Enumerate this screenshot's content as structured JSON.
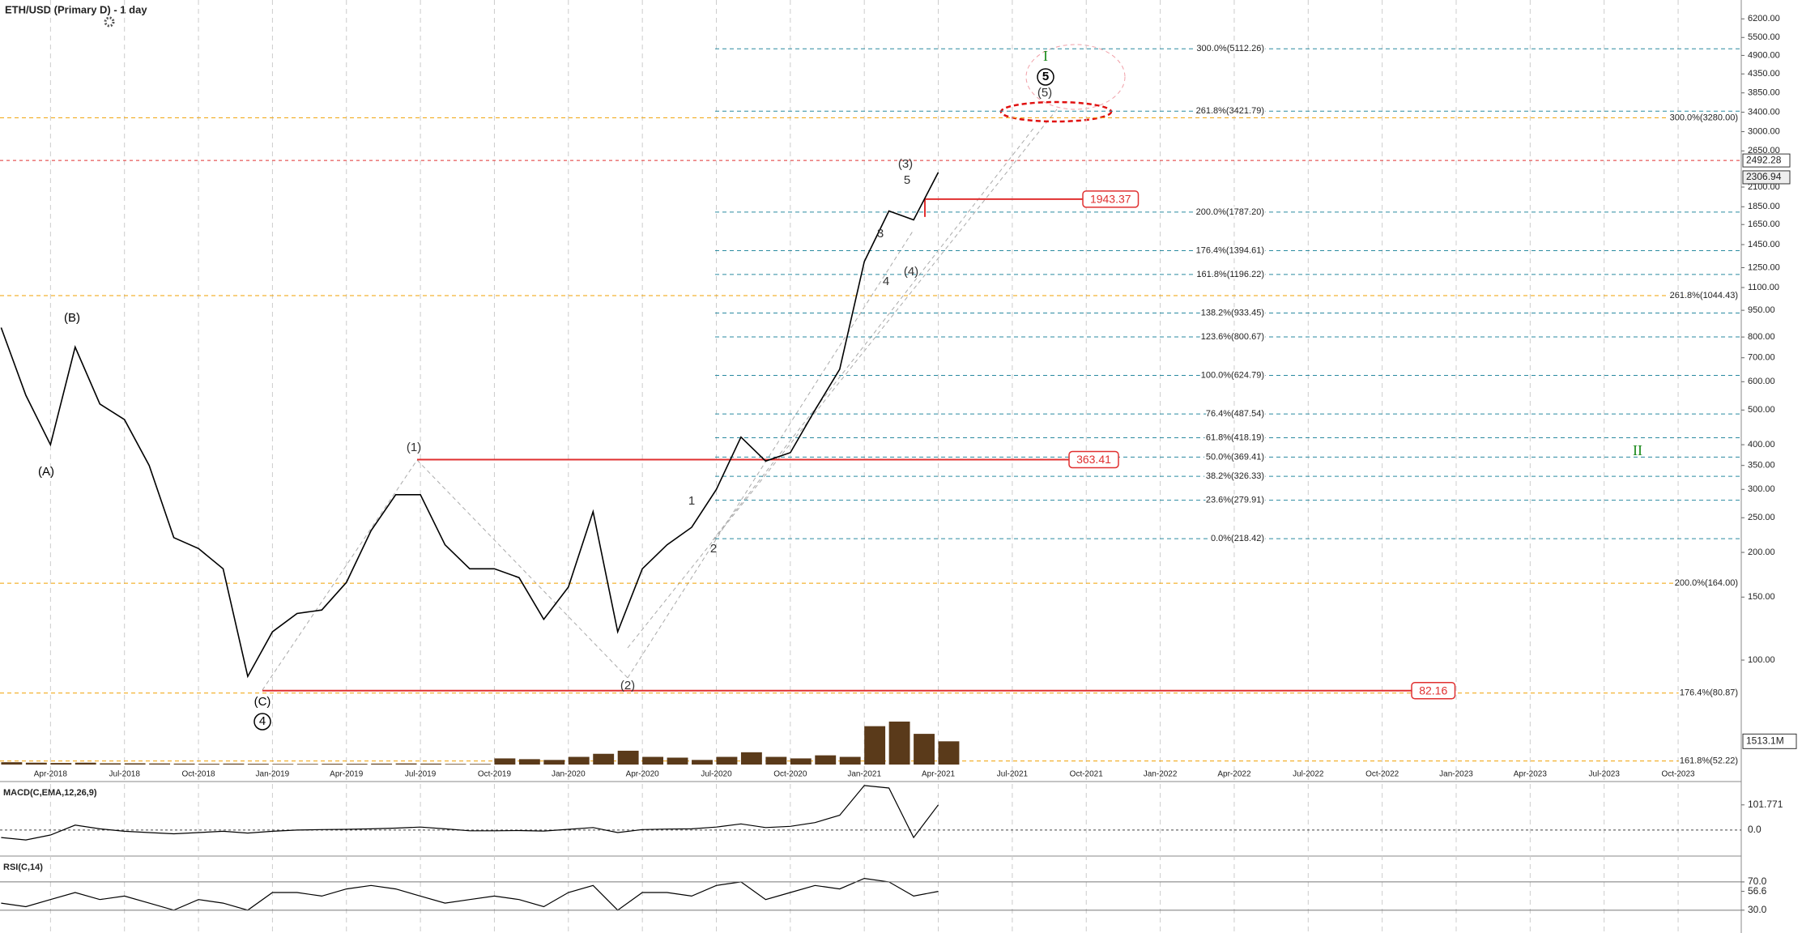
{
  "chart_data": {
    "type": "line",
    "title": "ETH/USD (Primary D) - 1 day",
    "x": [
      "2018-02",
      "2018-03",
      "2018-04",
      "2018-05",
      "2018-06",
      "2018-07",
      "2018-08",
      "2018-09",
      "2018-10",
      "2018-11",
      "2018-12",
      "2019-01",
      "2019-02",
      "2019-03",
      "2019-04",
      "2019-05",
      "2019-06",
      "2019-07",
      "2019-08",
      "2019-09",
      "2019-10",
      "2019-11",
      "2019-12",
      "2020-01",
      "2020-02",
      "2020-03",
      "2020-04",
      "2020-05",
      "2020-06",
      "2020-07",
      "2020-08",
      "2020-09",
      "2020-10",
      "2020-11",
      "2020-12",
      "2021-01",
      "2021-02",
      "2021-03",
      "2021-04"
    ],
    "series": [
      {
        "name": "ETH/USD",
        "color": "#000000",
        "values": [
          850,
          550,
          400,
          750,
          520,
          470,
          350,
          220,
          205,
          180,
          90,
          120,
          135,
          138,
          165,
          230,
          290,
          290,
          210,
          180,
          180,
          170,
          130,
          160,
          260,
          120,
          180,
          210,
          235,
          300,
          420,
          360,
          380,
          500,
          650,
          1300,
          1800,
          1700,
          2306.94
        ]
      }
    ],
    "log_scale": true,
    "ylim": [
      50,
      7000
    ],
    "yticks": [
      {
        "value": 6200,
        "label": "6200.00"
      },
      {
        "value": 5500,
        "label": "5500.00"
      },
      {
        "value": 4900,
        "label": "4900.00"
      },
      {
        "value": 4350,
        "label": "4350.00"
      },
      {
        "value": 3850,
        "label": "3850.00"
      },
      {
        "value": 3400,
        "label": "3400.00"
      },
      {
        "value": 3000,
        "label": "3000.00"
      },
      {
        "value": 2650,
        "label": "2650.00"
      },
      {
        "value": 2100,
        "label": "2100.00"
      },
      {
        "value": 1850,
        "label": "1850.00"
      },
      {
        "value": 1650,
        "label": "1650.00"
      },
      {
        "value": 1450,
        "label": "1450.00"
      },
      {
        "value": 1250,
        "label": "1250.00"
      },
      {
        "value": 1100,
        "label": "1100.00"
      },
      {
        "value": 950,
        "label": "950.00"
      },
      {
        "value": 800,
        "label": "800.00"
      },
      {
        "value": 700,
        "label": "700.00"
      },
      {
        "value": 600,
        "label": "600.00"
      },
      {
        "value": 500,
        "label": "500.00"
      },
      {
        "value": 400,
        "label": "400.00"
      },
      {
        "value": 350,
        "label": "350.00"
      },
      {
        "value": 300,
        "label": "300.00"
      },
      {
        "value": 250,
        "label": "250.00"
      },
      {
        "value": 200,
        "label": "200.00"
      },
      {
        "value": 150,
        "label": "150.00"
      },
      {
        "value": 100,
        "label": "100.00"
      }
    ],
    "xticks": [
      {
        "value": "2018-04",
        "label": "Apr-2018"
      },
      {
        "value": "2018-07",
        "label": "Jul-2018"
      },
      {
        "value": "2018-10",
        "label": "Oct-2018"
      },
      {
        "value": "2019-01",
        "label": "Jan-2019"
      },
      {
        "value": "2019-04",
        "label": "Apr-2019"
      },
      {
        "value": "2019-07",
        "label": "Jul-2019"
      },
      {
        "value": "2019-10",
        "label": "Oct-2019"
      },
      {
        "value": "2020-01",
        "label": "Jan-2020"
      },
      {
        "value": "2020-04",
        "label": "Apr-2020"
      },
      {
        "value": "2020-07",
        "label": "Jul-2020"
      },
      {
        "value": "2020-10",
        "label": "Oct-2020"
      },
      {
        "value": "2021-01",
        "label": "Jan-2021"
      },
      {
        "value": "2021-04",
        "label": "Apr-2021"
      },
      {
        "value": "2021-07",
        "label": "Jul-2021"
      },
      {
        "value": "2021-10",
        "label": "Oct-2021"
      },
      {
        "value": "2022-01",
        "label": "Jan-2022"
      },
      {
        "value": "2022-04",
        "label": "Apr-2022"
      },
      {
        "value": "2022-07",
        "label": "Jul-2022"
      },
      {
        "value": "2022-10",
        "label": "Oct-2022"
      },
      {
        "value": "2023-01",
        "label": "Jan-2023"
      },
      {
        "value": "2023-04",
        "label": "Apr-2023"
      },
      {
        "value": "2023-07",
        "label": "Jul-2023"
      },
      {
        "value": "2023-10",
        "label": "Oct-2023"
      }
    ],
    "grid": true,
    "fib_levels": [
      {
        "value": 5112.26,
        "label": "300.0%(5112.26)"
      },
      {
        "value": 3421.79,
        "label": "261.8%(3421.79)"
      },
      {
        "value": 1787.2,
        "label": "200.0%(1787.20)"
      },
      {
        "value": 1394.61,
        "label": "176.4%(1394.61)"
      },
      {
        "value": 1196.22,
        "label": "161.8%(1196.22)"
      },
      {
        "value": 933.45,
        "label": "138.2%(933.45)"
      },
      {
        "value": 800.67,
        "label": "123.6%(800.67)"
      },
      {
        "value": 624.79,
        "label": "100.0%(624.79)"
      },
      {
        "value": 487.54,
        "label": "76.4%(487.54)"
      },
      {
        "value": 418.19,
        "label": "61.8%(418.19)"
      },
      {
        "value": 369.41,
        "label": "50.0%(369.41)"
      },
      {
        "value": 326.33,
        "label": "38.2%(326.33)"
      },
      {
        "value": 279.91,
        "label": "23.6%(279.91)"
      },
      {
        "value": 218.42,
        "label": "0.0%(218.42)"
      }
    ],
    "fib_color": "#2a8aa0",
    "ext_levels": [
      {
        "value": 3280.0,
        "label": "300.0%(3280.00)"
      },
      {
        "value": 1044.43,
        "label": "261.8%(1044.43)"
      },
      {
        "value": 164.0,
        "label": "200.0%(164.00)"
      },
      {
        "value": 80.87,
        "label": "176.4%(80.87)"
      },
      {
        "value": 52.22,
        "label": "161.8%(52.22)"
      }
    ],
    "ext_color": "#f0a000",
    "key_levels": [
      363.41,
      1943.37,
      82.16
    ],
    "key_color": "#e03030",
    "price_markers": [
      2492.28,
      2306.94
    ],
    "wave_labels": [
      {
        "text": "(B)",
        "color": "#000000"
      },
      {
        "text": "(A)",
        "color": "#000000"
      },
      {
        "text": "(C)",
        "color": "#000000"
      },
      {
        "text": "4",
        "color": "#000000"
      },
      {
        "text": "(1)",
        "color": "#333333"
      },
      {
        "text": "(2)",
        "color": "#333333"
      },
      {
        "text": "1",
        "color": "#333333"
      },
      {
        "text": "2",
        "color": "#333333"
      },
      {
        "text": "3",
        "color": "#333333"
      },
      {
        "text": "4",
        "color": "#333333"
      },
      {
        "text": "(4)",
        "color": "#333333"
      },
      {
        "text": "(3)",
        "color": "#333333"
      },
      {
        "text": "5",
        "color": "#333333"
      },
      {
        "text": "(5)",
        "color": "#333333"
      },
      {
        "text": "5",
        "color": "#000000"
      },
      {
        "text": "I",
        "color": "#1a8a1a"
      },
      {
        "text": "II",
        "color": "#1a8a1a"
      }
    ],
    "volume": {
      "color": "#5a3a1a",
      "ylim": [
        0,
        3800
      ],
      "values": [
        150,
        120,
        100,
        120,
        80,
        80,
        70,
        60,
        50,
        60,
        50,
        40,
        40,
        50,
        50,
        60,
        70,
        60,
        40,
        40,
        400,
        350,
        300,
        500,
        700,
        900,
        500,
        450,
        300,
        500,
        800,
        500,
        400,
        600,
        500,
        2500,
        2800,
        2000,
        1513.1
      ],
      "last": {
        "value": 1513.1,
        "label": "1513.1M"
      }
    },
    "macd": {
      "title": "MACD(C,EMA,12,26,9)",
      "color": "#000000",
      "ylim": [
        -92,
        183
      ],
      "values": [
        -30,
        -40,
        -20,
        20,
        5,
        -5,
        -10,
        -15,
        -10,
        -5,
        -12,
        -5,
        0,
        2,
        3,
        5,
        8,
        12,
        5,
        -3,
        -3,
        -2,
        -4,
        3,
        10,
        -10,
        2,
        4,
        5,
        12,
        25,
        10,
        15,
        30,
        60,
        180,
        170,
        -30,
        101.771
      ],
      "yticks": [
        101.771,
        {
          "value": 0,
          "label": "0.0"
        }
      ]
    },
    "rsi": {
      "title": "RSI(C,14)",
      "color": "#000000",
      "ylim": [
        0,
        102
      ],
      "values": [
        40,
        35,
        45,
        55,
        45,
        50,
        40,
        30,
        45,
        40,
        30,
        55,
        55,
        50,
        60,
        65,
        60,
        50,
        40,
        45,
        50,
        45,
        35,
        55,
        65,
        30,
        55,
        55,
        50,
        65,
        70,
        45,
        55,
        65,
        60,
        75,
        70,
        50,
        56.6
      ],
      "yticks": [
        {
          "value": 70,
          "label": "70.0"
        },
        56.6,
        {
          "value": 30,
          "label": "30.0"
        }
      ]
    }
  }
}
